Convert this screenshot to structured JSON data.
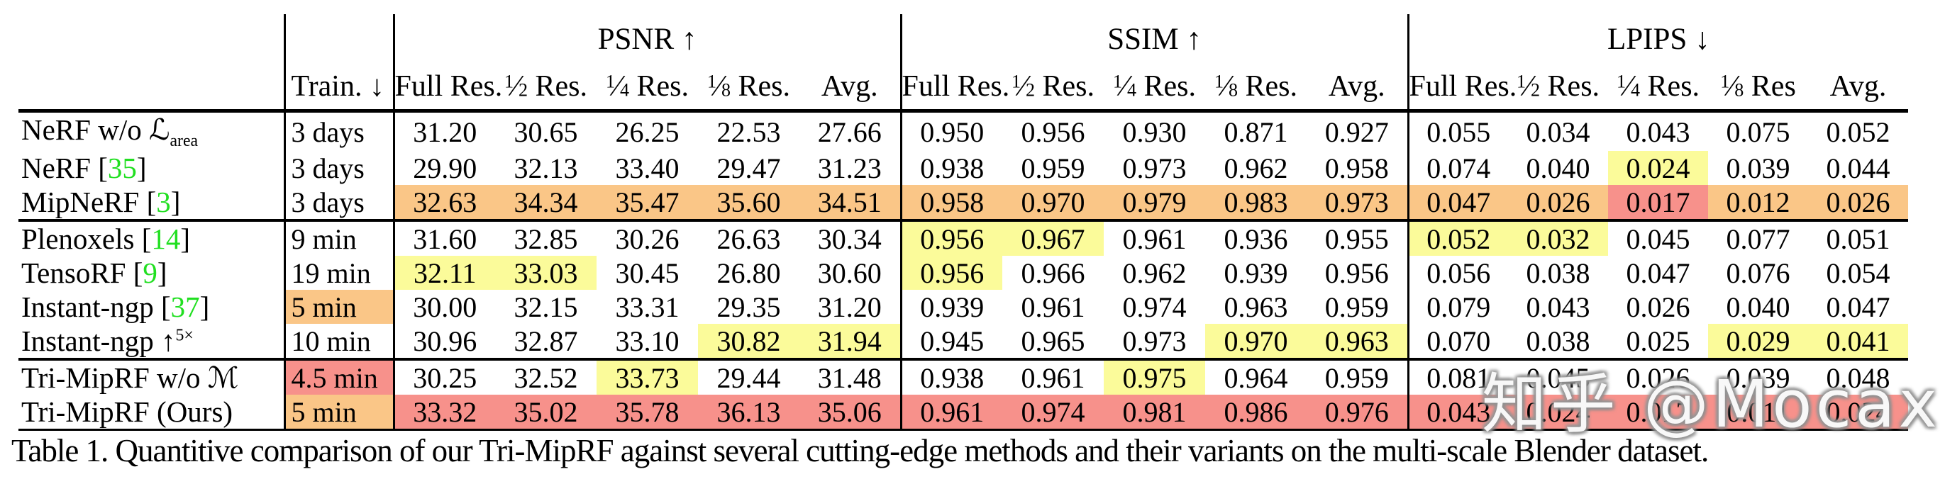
{
  "colors": {
    "yellow": "#FBFB9A",
    "orange": "#FAC687",
    "red": "#F7918B",
    "cite_green": "#21DF21"
  },
  "table": {
    "train_header": "Train. ↓",
    "groups": [
      {
        "title": "PSNR ↑"
      },
      {
        "title": "SSIM ↑"
      },
      {
        "title": "LPIPS ↓"
      }
    ],
    "subcols": {
      "psnr": [
        {
          "t": "Full Res."
        },
        {
          "f": "1/2",
          "t": "Res."
        },
        {
          "f": "1/4",
          "t": "Res."
        },
        {
          "f": "1/8",
          "t": "Res."
        },
        {
          "t": "Avg."
        }
      ],
      "ssim": [
        {
          "t": "Full Res."
        },
        {
          "f": "1/2",
          "t": "Res."
        },
        {
          "f": "1/4",
          "t": "Res."
        },
        {
          "f": "1/8",
          "t": "Res."
        },
        {
          "t": "Avg."
        }
      ],
      "lpips": [
        {
          "t": "Full Res."
        },
        {
          "f": "1/2",
          "t": "Res."
        },
        {
          "f": "1/4",
          "t": "Res."
        },
        {
          "f": "1/8",
          "t": "Res"
        },
        {
          "t": "Avg."
        }
      ]
    },
    "rows": [
      {
        "name": {
          "pre": "NeRF w/o ",
          "script": "ℒ",
          "sub": "area"
        },
        "train": {
          "v": "3 days",
          "hl": ""
        },
        "psnr": {
          "v": [
            "31.20",
            "30.65",
            "26.25",
            "22.53",
            "27.66"
          ],
          "hl": [
            "",
            "",
            "",
            "",
            ""
          ]
        },
        "ssim": {
          "v": [
            "0.950",
            "0.956",
            "0.930",
            "0.871",
            "0.927"
          ],
          "hl": [
            "",
            "",
            "",
            "",
            ""
          ]
        },
        "lpips": {
          "v": [
            "0.055",
            "0.034",
            "0.043",
            "0.075",
            "0.052"
          ],
          "hl": [
            "",
            "",
            "",
            "",
            ""
          ]
        },
        "section_end": false
      },
      {
        "name": {
          "pre": "NeRF ",
          "cite": "35"
        },
        "train": {
          "v": "3 days",
          "hl": ""
        },
        "psnr": {
          "v": [
            "29.90",
            "32.13",
            "33.40",
            "29.47",
            "31.23"
          ],
          "hl": [
            "",
            "",
            "",
            "",
            ""
          ]
        },
        "ssim": {
          "v": [
            "0.938",
            "0.959",
            "0.973",
            "0.962",
            "0.958"
          ],
          "hl": [
            "",
            "",
            "",
            "",
            ""
          ]
        },
        "lpips": {
          "v": [
            "0.074",
            "0.040",
            "0.024",
            "0.039",
            "0.044"
          ],
          "hl": [
            "",
            "",
            "yellow",
            "",
            ""
          ]
        },
        "section_end": false
      },
      {
        "name": {
          "pre": "MipNeRF ",
          "cite": "3"
        },
        "train": {
          "v": "3 days",
          "hl": ""
        },
        "psnr": {
          "v": [
            "32.63",
            "34.34",
            "35.47",
            "35.60",
            "34.51"
          ],
          "hl": [
            "orange",
            "orange",
            "orange",
            "orange",
            "orange"
          ]
        },
        "ssim": {
          "v": [
            "0.958",
            "0.970",
            "0.979",
            "0.983",
            "0.973"
          ],
          "hl": [
            "orange",
            "orange",
            "orange",
            "orange",
            "orange"
          ]
        },
        "lpips": {
          "v": [
            "0.047",
            "0.026",
            "0.017",
            "0.012",
            "0.026"
          ],
          "hl": [
            "orange",
            "orange",
            "red",
            "orange",
            "orange"
          ]
        },
        "section_end": true
      },
      {
        "name": {
          "pre": "Plenoxels ",
          "cite": "14"
        },
        "train": {
          "v": "9 min",
          "hl": ""
        },
        "psnr": {
          "v": [
            "31.60",
            "32.85",
            "30.26",
            "26.63",
            "30.34"
          ],
          "hl": [
            "",
            "",
            "",
            "",
            ""
          ]
        },
        "ssim": {
          "v": [
            "0.956",
            "0.967",
            "0.961",
            "0.936",
            "0.955"
          ],
          "hl": [
            "yellow",
            "yellow",
            "",
            "",
            ""
          ]
        },
        "lpips": {
          "v": [
            "0.052",
            "0.032",
            "0.045",
            "0.077",
            "0.051"
          ],
          "hl": [
            "yellow",
            "yellow",
            "",
            "",
            ""
          ]
        },
        "section_end": false
      },
      {
        "name": {
          "pre": "TensoRF ",
          "cite": "9"
        },
        "train": {
          "v": "19 min",
          "hl": ""
        },
        "psnr": {
          "v": [
            "32.11",
            "33.03",
            "30.45",
            "26.80",
            "30.60"
          ],
          "hl": [
            "yellow",
            "yellow",
            "",
            "",
            ""
          ]
        },
        "ssim": {
          "v": [
            "0.956",
            "0.966",
            "0.962",
            "0.939",
            "0.956"
          ],
          "hl": [
            "yellow",
            "",
            "",
            "",
            ""
          ]
        },
        "lpips": {
          "v": [
            "0.056",
            "0.038",
            "0.047",
            "0.076",
            "0.054"
          ],
          "hl": [
            "",
            "",
            "",
            "",
            ""
          ]
        },
        "section_end": false
      },
      {
        "name": {
          "pre": "Instant-ngp ",
          "cite": "37"
        },
        "train": {
          "v": "5 min",
          "hl": "orange"
        },
        "psnr": {
          "v": [
            "30.00",
            "32.15",
            "33.31",
            "29.35",
            "31.20"
          ],
          "hl": [
            "",
            "",
            "",
            "",
            ""
          ]
        },
        "ssim": {
          "v": [
            "0.939",
            "0.961",
            "0.974",
            "0.963",
            "0.959"
          ],
          "hl": [
            "",
            "",
            "",
            "",
            ""
          ]
        },
        "lpips": {
          "v": [
            "0.079",
            "0.043",
            "0.026",
            "0.040",
            "0.047"
          ],
          "hl": [
            "",
            "",
            "",
            "",
            ""
          ]
        },
        "section_end": false
      },
      {
        "name": {
          "pre": "Instant-ngp ",
          "arrow": "↑",
          "sup": "5×"
        },
        "train": {
          "v": "10 min",
          "hl": ""
        },
        "psnr": {
          "v": [
            "30.96",
            "32.87",
            "33.10",
            "30.82",
            "31.94"
          ],
          "hl": [
            "",
            "",
            "",
            "yellow",
            "yellow"
          ]
        },
        "ssim": {
          "v": [
            "0.945",
            "0.965",
            "0.973",
            "0.970",
            "0.963"
          ],
          "hl": [
            "",
            "",
            "",
            "yellow",
            "yellow"
          ]
        },
        "lpips": {
          "v": [
            "0.070",
            "0.038",
            "0.025",
            "0.029",
            "0.041"
          ],
          "hl": [
            "",
            "",
            "",
            "yellow",
            "yellow"
          ]
        },
        "section_end": true
      },
      {
        "name": {
          "pre": "Tri-MipRF w/o ",
          "script": "ℳ"
        },
        "train": {
          "v": "4.5 min",
          "hl": "red"
        },
        "psnr": {
          "v": [
            "30.25",
            "32.52",
            "33.73",
            "29.44",
            "31.48"
          ],
          "hl": [
            "",
            "",
            "yellow",
            "",
            ""
          ]
        },
        "ssim": {
          "v": [
            "0.938",
            "0.961",
            "0.975",
            "0.964",
            "0.959"
          ],
          "hl": [
            "",
            "",
            "yellow",
            "",
            ""
          ]
        },
        "lpips": {
          "v": [
            "0.081",
            "0.045",
            "0.026",
            "0.039",
            "0.048"
          ],
          "hl": [
            "",
            "",
            "",
            "",
            ""
          ]
        },
        "section_end": false
      },
      {
        "name": {
          "pre": "Tri-MipRF (Ours)"
        },
        "train": {
          "v": "5 min",
          "hl": "orange"
        },
        "psnr": {
          "v": [
            "33.32",
            "35.02",
            "35.78",
            "36.13",
            "35.06"
          ],
          "hl": [
            "red",
            "red",
            "red",
            "red",
            "red"
          ]
        },
        "ssim": {
          "v": [
            "0.961",
            "0.974",
            "0.981",
            "0.986",
            "0.976"
          ],
          "hl": [
            "red",
            "red",
            "red",
            "red",
            "red"
          ]
        },
        "lpips": {
          "v": [
            "0.043",
            "0.024",
            "0.017",
            "0.011",
            "0.024"
          ],
          "hl": [
            "red",
            "red",
            "red",
            "red",
            "red"
          ]
        },
        "section_end": false
      }
    ]
  },
  "caption": "Table 1. Quantitive comparison of our Tri-MipRF against several cutting-edge methods and their variants on the multi-scale Blender dataset.",
  "watermark": "知乎 @Mocax"
}
